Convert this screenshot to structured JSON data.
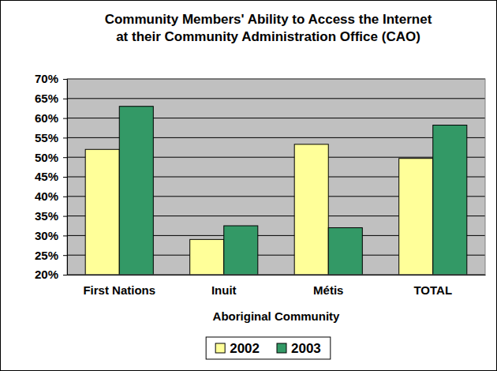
{
  "chart_data": {
    "type": "bar",
    "title": "Community Members' Ability to Access the Internet\nat their Community Administration Office (CAO)",
    "x_label": "Aboriginal Community",
    "categories": [
      "First Nations",
      "Inuit",
      "Métis",
      "TOTAL"
    ],
    "series": [
      {
        "name": "2002",
        "color": "#ffff99",
        "values": [
          52,
          29,
          53.3,
          49.7
        ]
      },
      {
        "name": "2003",
        "color": "#339966",
        "values": [
          63,
          32.5,
          32,
          58.2
        ]
      }
    ],
    "ylim": [
      20,
      70
    ],
    "yticks": [
      {
        "value": 20,
        "label": "20%"
      },
      {
        "value": 25,
        "label": "25%"
      },
      {
        "value": 30,
        "label": "30%"
      },
      {
        "value": 35,
        "label": "35%"
      },
      {
        "value": 40,
        "label": "40%"
      },
      {
        "value": 45,
        "label": "45%"
      },
      {
        "value": 50,
        "label": "50%"
      },
      {
        "value": 55,
        "label": "55%"
      },
      {
        "value": 60,
        "label": "60%"
      },
      {
        "value": 65,
        "label": "65%"
      },
      {
        "value": 70,
        "label": "70%"
      }
    ],
    "grid": true,
    "legend": "bottom"
  }
}
